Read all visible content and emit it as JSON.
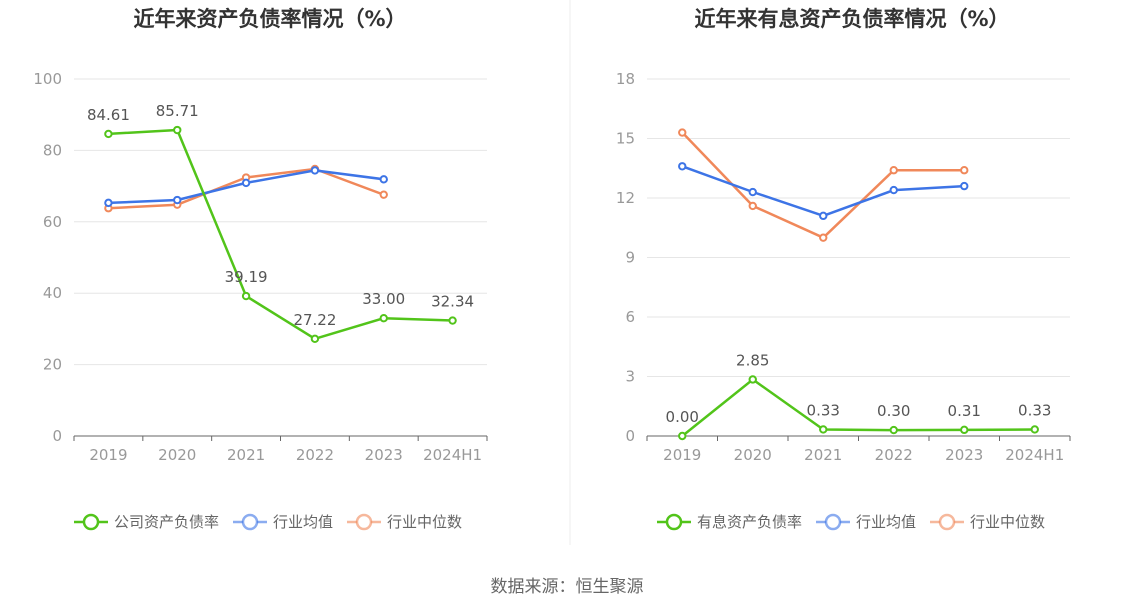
{
  "chart_data": [
    {
      "type": "line",
      "title": "近年来资产负债率情况（%）",
      "categories": [
        "2019",
        "2020",
        "2021",
        "2022",
        "2023",
        "2024H1"
      ],
      "ylim": [
        0,
        100
      ],
      "yticks": [
        "0",
        "20",
        "40",
        "60",
        "80",
        "100"
      ],
      "grid": true,
      "legend_position": "bottom",
      "series": [
        {
          "name": "公司资产负债率",
          "color": "#52c41a",
          "values": [
            84.61,
            85.71,
            39.19,
            27.22,
            33.0,
            32.34
          ],
          "labels": [
            "84.61",
            "85.71",
            "39.19",
            "27.22",
            "33.00",
            "32.34"
          ]
        },
        {
          "name": "行业均值",
          "color": "#3d74e6",
          "values": [
            65.3,
            66.1,
            70.9,
            74.4,
            71.9,
            null
          ]
        },
        {
          "name": "行业中位数",
          "color": "#f0885a",
          "values": [
            63.8,
            64.8,
            72.4,
            74.8,
            67.6,
            null
          ]
        }
      ]
    },
    {
      "type": "line",
      "title": "近年来有息资产负债率情况（%）",
      "categories": [
        "2019",
        "2020",
        "2021",
        "2022",
        "2023",
        "2024H1"
      ],
      "ylim": [
        0,
        18
      ],
      "yticks": [
        "0",
        "3",
        "6",
        "9",
        "12",
        "15",
        "18"
      ],
      "grid": true,
      "legend_position": "bottom",
      "series": [
        {
          "name": "有息资产负债率",
          "color": "#52c41a",
          "values": [
            0.0,
            2.85,
            0.33,
            0.3,
            0.31,
            0.33
          ],
          "labels": [
            "0.00",
            "2.85",
            "0.33",
            "0.30",
            "0.31",
            "0.33"
          ]
        },
        {
          "name": "行业均值",
          "color": "#3d74e6",
          "values": [
            13.6,
            12.3,
            11.1,
            12.4,
            12.6,
            null
          ]
        },
        {
          "name": "行业中位数",
          "color": "#f0885a",
          "values": [
            15.3,
            11.6,
            10.0,
            13.4,
            13.4,
            null
          ]
        }
      ]
    }
  ],
  "footer": {
    "source": "数据来源：恒生聚源"
  }
}
